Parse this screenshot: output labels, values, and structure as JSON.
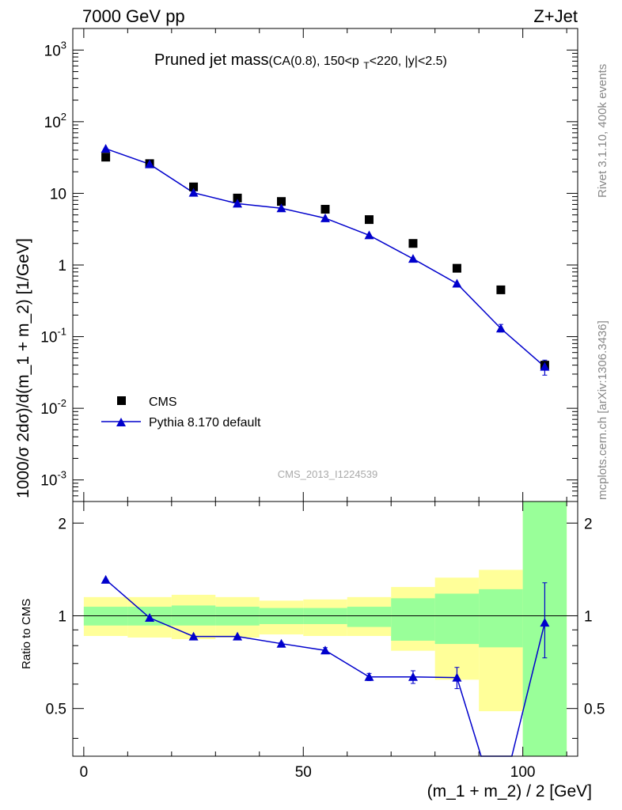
{
  "header": {
    "left": "7000 GeV pp",
    "right": "Z+Jet"
  },
  "side_labels": {
    "rivet": "Rivet 3.1.10,  400k events",
    "mcplots": "mcplots.cern.ch [arXiv:1306.3436]"
  },
  "chart_data": [
    {
      "type": "scatter",
      "panel": "main",
      "title": "Pruned jet mass",
      "subtitle": "(CA(0.8), 150<p_T<220, |y|<2.5)",
      "watermark": "CMS_2013_I1224539",
      "xlabel": "",
      "ylabel": "1000/σ 2dσ)/d(m_1 + m_2) [1/GeV]",
      "yscale": "log",
      "xlim": [
        -2.5,
        112.5
      ],
      "ylim": [
        0.0005,
        2000
      ],
      "ytick_labels": [
        "10^-3",
        "10^-2",
        "10^-1",
        "1",
        "10",
        "10^2",
        "10^3"
      ],
      "legend_position": "bottom-left",
      "series": [
        {
          "name": "CMS",
          "color": "#000000",
          "marker": "square",
          "x": [
            5,
            15,
            25,
            35,
            45,
            55,
            65,
            75,
            85,
            95,
            105
          ],
          "values": [
            32,
            26,
            12.3,
            8.6,
            7.7,
            6.0,
            4.3,
            2.0,
            0.9,
            0.45,
            0.04
          ]
        },
        {
          "name": "Pythia 8.170 default",
          "color": "#0000cc",
          "marker": "triangle",
          "x": [
            5,
            15,
            25,
            35,
            45,
            55,
            65,
            75,
            85,
            95,
            105
          ],
          "values": [
            42,
            25.5,
            10.2,
            7.2,
            6.2,
            4.5,
            2.6,
            1.22,
            0.55,
            0.13,
            0.038
          ],
          "err_hi": [
            0,
            0,
            0,
            0,
            0,
            0,
            0,
            0,
            0,
            0.018,
            0.009
          ],
          "err_lo": [
            0,
            0,
            0,
            0,
            0,
            0,
            0,
            0,
            0,
            0.014,
            0.009
          ]
        }
      ]
    },
    {
      "type": "line",
      "panel": "ratio",
      "xlabel": "(m_1 + m_2) / 2 [GeV]",
      "ylabel": "Ratio to CMS",
      "xlim": [
        -2.5,
        112.5
      ],
      "ylim": [
        0.35,
        2.35
      ],
      "xticks": [
        0,
        50,
        100
      ],
      "yticks": [
        0.5,
        1,
        2
      ],
      "bands": {
        "bin_edges": [
          0,
          10,
          20,
          30,
          40,
          50,
          60,
          70,
          80,
          90,
          100,
          110
        ],
        "inner_color": "#99ff99",
        "outer_color": "#ffff99",
        "inner_lo": [
          0.93,
          0.93,
          0.93,
          0.93,
          0.94,
          0.94,
          0.92,
          0.83,
          0.81,
          0.79,
          0.35
        ],
        "inner_hi": [
          1.07,
          1.07,
          1.08,
          1.07,
          1.06,
          1.06,
          1.07,
          1.14,
          1.18,
          1.22,
          2.35
        ],
        "outer_lo": [
          0.86,
          0.85,
          0.84,
          0.85,
          0.87,
          0.86,
          0.86,
          0.77,
          0.62,
          0.49,
          0.35
        ],
        "outer_hi": [
          1.15,
          1.15,
          1.17,
          1.15,
          1.12,
          1.13,
          1.15,
          1.24,
          1.33,
          1.41,
          2.35
        ]
      },
      "series": [
        {
          "name": "Pythia 8.170 default",
          "color": "#0000cc",
          "marker": "triangle",
          "x": [
            5,
            15,
            25,
            35,
            45,
            55,
            65,
            75,
            85,
            105
          ],
          "values": [
            1.31,
            0.985,
            0.857,
            0.857,
            0.812,
            0.772,
            0.633,
            0.633,
            0.63,
            0.95
          ],
          "err_hi": [
            0,
            0,
            0,
            0,
            0.007,
            0.016,
            0.017,
            0.03,
            0.05,
            0.33
          ],
          "err_lo": [
            0,
            0,
            0,
            0,
            0.007,
            0.016,
            0.017,
            0.03,
            0.05,
            0.22
          ],
          "offscale": [
            [
              90.5,
              0.35
            ],
            [
              97.5,
              0.35
            ]
          ]
        }
      ]
    }
  ]
}
